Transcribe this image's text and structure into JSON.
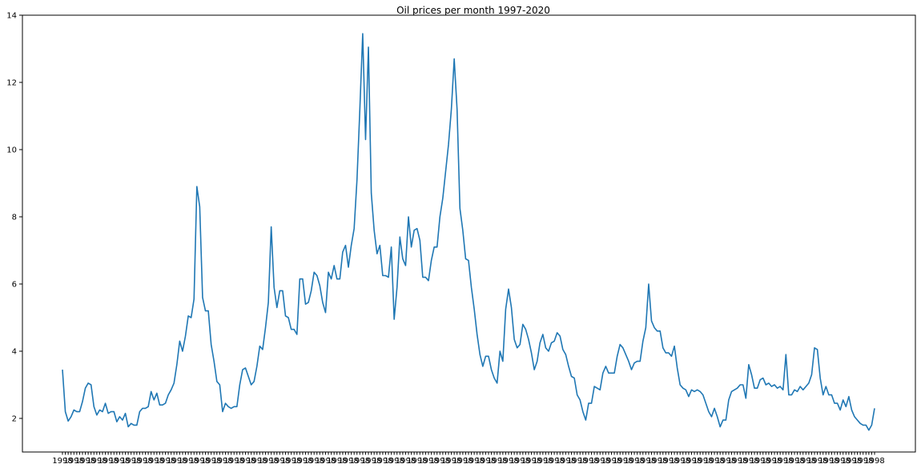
{
  "chart_data": {
    "type": "line",
    "title": "Oil prices per month 1997-2020",
    "xlabel": "",
    "ylabel": "",
    "ylim": [
      1.0,
      14.0
    ],
    "yticks": [
      2,
      4,
      6,
      8,
      10,
      12,
      14
    ],
    "grid": false,
    "line_color": "#1f77b4",
    "x_tick_labels_overlapping": "1998",
    "series": [
      {
        "values": [
          3.45,
          2.2,
          1.92,
          2.05,
          2.25,
          2.2,
          2.2,
          2.5,
          2.9,
          3.05,
          3.0,
          2.35,
          2.1,
          2.25,
          2.2,
          2.45,
          2.15,
          2.2,
          2.2,
          1.9,
          2.05,
          1.95,
          2.15,
          1.75,
          1.85,
          1.8,
          1.8,
          2.2,
          2.3,
          2.3,
          2.35,
          2.8,
          2.55,
          2.75,
          2.4,
          2.4,
          2.45,
          2.7,
          2.85,
          3.05,
          3.6,
          4.3,
          4.0,
          4.45,
          5.05,
          5.0,
          5.55,
          8.9,
          8.3,
          5.6,
          5.2,
          5.2,
          4.2,
          3.7,
          3.1,
          3.0,
          2.2,
          2.45,
          2.35,
          2.3,
          2.35,
          2.35,
          3.0,
          3.45,
          3.5,
          3.25,
          3.0,
          3.1,
          3.55,
          4.15,
          4.05,
          4.7,
          5.45,
          7.7,
          5.9,
          5.3,
          5.8,
          5.8,
          5.05,
          5.0,
          4.65,
          4.65,
          4.5,
          6.15,
          6.15,
          5.4,
          5.45,
          5.8,
          6.35,
          6.25,
          5.95,
          5.45,
          5.15,
          6.35,
          6.15,
          6.55,
          6.15,
          6.15,
          6.95,
          7.15,
          6.5,
          7.15,
          7.65,
          9.1,
          11.2,
          13.45,
          10.3,
          13.05,
          8.7,
          7.6,
          6.9,
          7.15,
          6.25,
          6.25,
          6.2,
          7.1,
          4.95,
          5.9,
          7.4,
          6.75,
          6.55,
          8.0,
          7.1,
          7.6,
          7.65,
          7.3,
          6.2,
          6.2,
          6.1,
          6.7,
          7.1,
          7.1,
          8.0,
          8.55,
          9.35,
          10.15,
          11.2,
          12.7,
          11.2,
          8.25,
          7.6,
          6.75,
          6.7,
          5.9,
          5.25,
          4.5,
          3.9,
          3.55,
          3.85,
          3.85,
          3.45,
          3.2,
          3.05,
          4.0,
          3.7,
          5.25,
          5.85,
          5.3,
          4.35,
          4.1,
          4.2,
          4.8,
          4.65,
          4.35,
          3.95,
          3.45,
          3.7,
          4.25,
          4.5,
          4.1,
          4.0,
          4.25,
          4.3,
          4.55,
          4.45,
          4.05,
          3.9,
          3.55,
          3.25,
          3.2,
          2.7,
          2.55,
          2.2,
          1.95,
          2.45,
          2.45,
          2.95,
          2.9,
          2.85,
          3.35,
          3.55,
          3.35,
          3.35,
          3.35,
          3.85,
          4.2,
          4.1,
          3.9,
          3.7,
          3.45,
          3.65,
          3.7,
          3.7,
          4.3,
          4.7,
          6.0,
          4.9,
          4.7,
          4.6,
          4.6,
          4.1,
          3.95,
          3.95,
          3.85,
          4.15,
          3.5,
          3.0,
          2.9,
          2.85,
          2.65,
          2.85,
          2.8,
          2.85,
          2.8,
          2.7,
          2.45,
          2.2,
          2.05,
          2.3,
          2.05,
          1.75,
          1.95,
          1.95,
          2.55,
          2.8,
          2.85,
          2.9,
          3.0,
          3.0,
          2.6,
          3.6,
          3.3,
          2.9,
          2.9,
          3.15,
          3.2,
          3.0,
          3.05,
          2.95,
          3.0,
          2.9,
          2.95,
          2.85,
          3.9,
          2.7,
          2.7,
          2.85,
          2.8,
          2.95,
          2.85,
          2.95,
          3.05,
          3.3,
          4.1,
          4.05,
          3.2,
          2.7,
          2.95,
          2.7,
          2.7,
          2.45,
          2.45,
          2.25,
          2.55,
          2.35,
          2.65,
          2.25,
          2.05,
          1.95,
          1.85,
          1.8,
          1.8,
          1.65,
          1.8,
          2.3
        ]
      }
    ]
  }
}
